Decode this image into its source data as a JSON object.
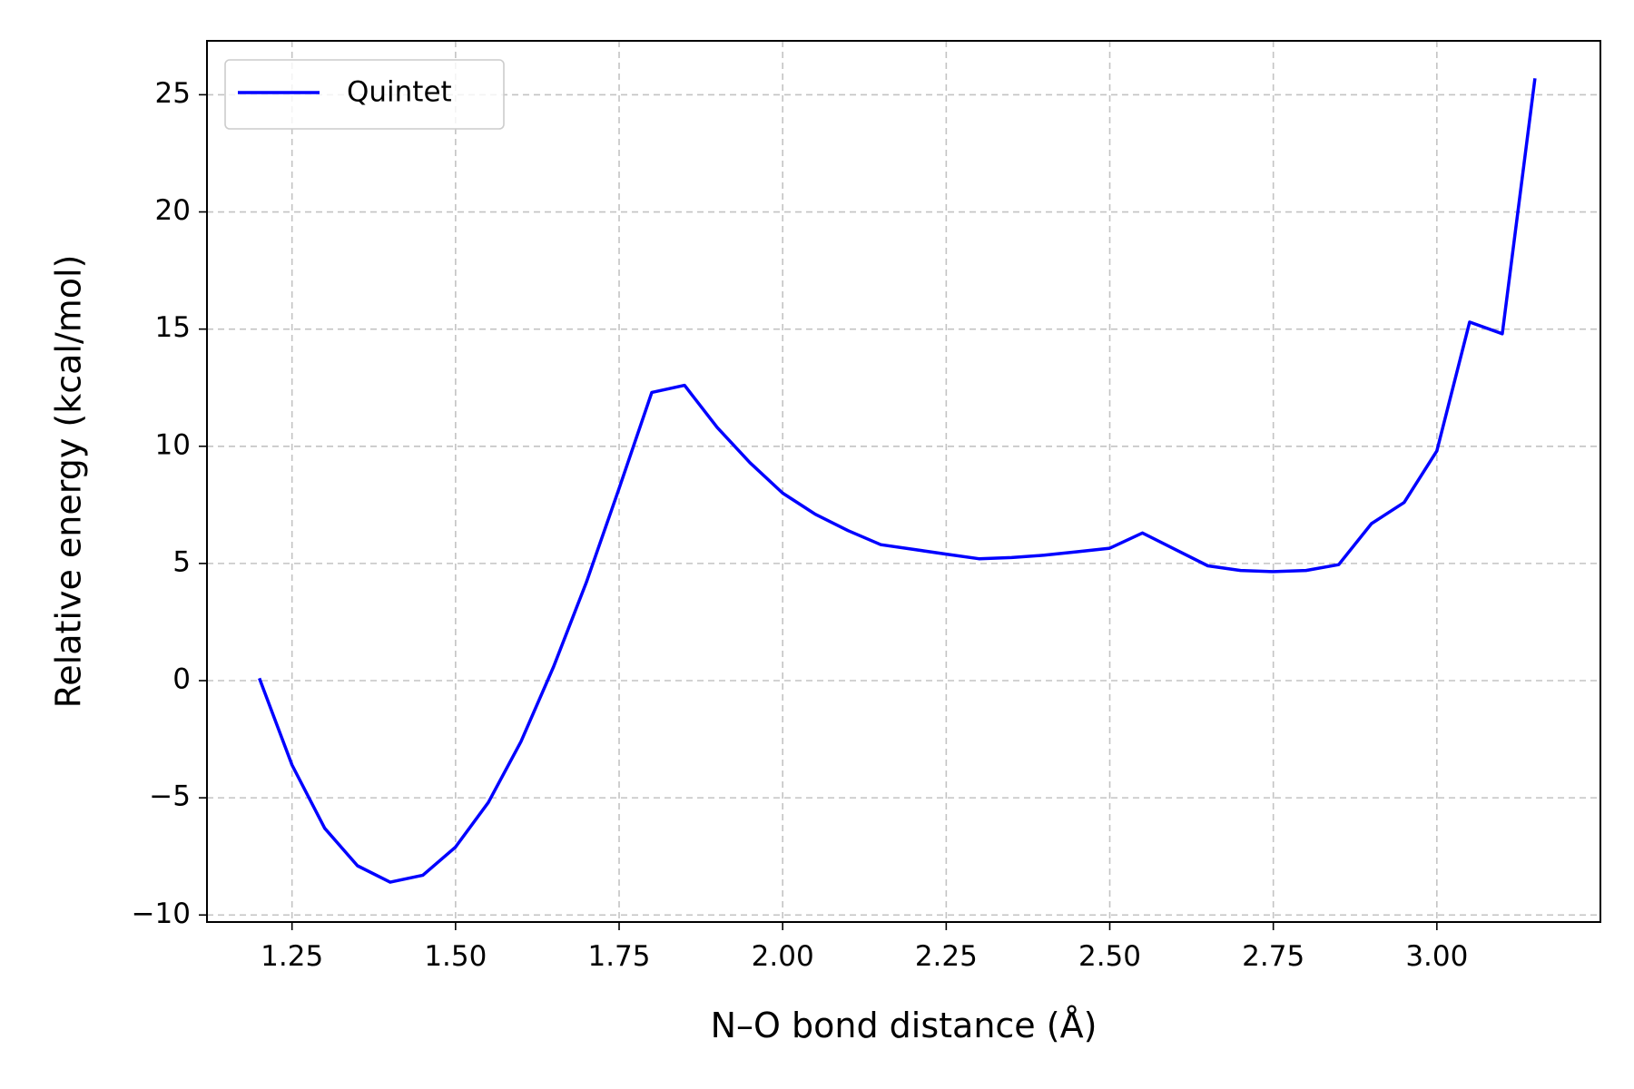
{
  "chart_data": {
    "type": "line",
    "title": "",
    "xlabel": "N–O bond distance (Å)",
    "ylabel": "Relative energy (kcal/mol)",
    "xlim": [
      1.12,
      3.25
    ],
    "ylim": [
      -10.3,
      27.3
    ],
    "x_ticks": [
      1.25,
      1.5,
      1.75,
      2.0,
      2.25,
      2.5,
      2.75,
      3.0
    ],
    "x_tick_labels": [
      "1.25",
      "1.50",
      "1.75",
      "2.00",
      "2.25",
      "2.50",
      "2.75",
      "3.00"
    ],
    "y_ticks": [
      -10,
      -5,
      0,
      5,
      10,
      15,
      20,
      25
    ],
    "y_tick_labels": [
      "−10",
      "−5",
      "0",
      "5",
      "10",
      "15",
      "20",
      "25"
    ],
    "grid": true,
    "legend_position": "top-left",
    "series": [
      {
        "name": "Quintet",
        "color": "#0000ff",
        "x": [
          1.2,
          1.25,
          1.3,
          1.35,
          1.4,
          1.45,
          1.5,
          1.55,
          1.6,
          1.65,
          1.7,
          1.75,
          1.8,
          1.85,
          1.9,
          1.95,
          2.0,
          2.05,
          2.1,
          2.15,
          2.2,
          2.25,
          2.3,
          2.35,
          2.4,
          2.45,
          2.5,
          2.55,
          2.6,
          2.65,
          2.7,
          2.75,
          2.8,
          2.85,
          2.9,
          2.95,
          3.0,
          3.05,
          3.1,
          3.15
        ],
        "y": [
          0.1,
          -3.6,
          -6.3,
          -7.9,
          -8.6,
          -8.3,
          -7.1,
          -5.2,
          -2.6,
          0.6,
          4.2,
          8.2,
          12.3,
          12.6,
          10.8,
          9.3,
          8.0,
          7.1,
          6.4,
          5.8,
          5.6,
          5.4,
          5.2,
          5.25,
          5.35,
          5.5,
          5.65,
          6.3,
          5.6,
          4.9,
          4.7,
          4.65,
          4.7,
          4.95,
          6.7,
          7.6,
          9.8,
          15.3,
          14.8,
          25.7
        ]
      }
    ]
  }
}
